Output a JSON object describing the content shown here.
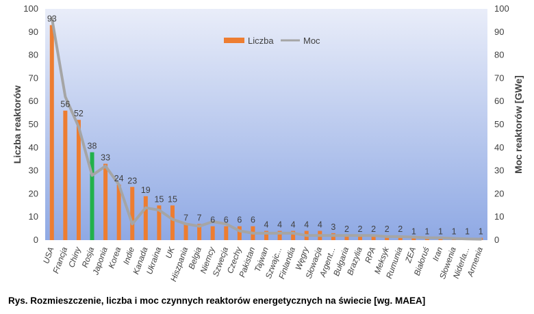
{
  "chart_data": {
    "type": "bar+line",
    "categories": [
      "USA",
      "Francja",
      "Chiny",
      "Rosja",
      "Japonia",
      "Korea",
      "Indie",
      "Kanada",
      "Ukraina",
      "UK",
      "Hiszpania",
      "Belgia",
      "Niemcy",
      "Szwecja",
      "Czechy",
      "Pakistan",
      "Tajwan",
      "Szwajc...",
      "Finlandia",
      "Węgry",
      "Słowacja",
      "Argent...",
      "Bułgaria",
      "Brazylia",
      "RPA",
      "Meksyk",
      "Rumunia",
      "ZEA",
      "Białoruś",
      "Iran",
      "Słowenia",
      "Niderla...",
      "Armenia"
    ],
    "series": [
      {
        "name": "Liczba",
        "type": "bar",
        "axis": "left",
        "color": "#ED7D31",
        "highlight_index": 3,
        "highlight_color": "#22B14C",
        "values": [
          93,
          56,
          52,
          38,
          33,
          24,
          23,
          19,
          15,
          15,
          7,
          7,
          6,
          6,
          6,
          6,
          4,
          4,
          4,
          4,
          4,
          3,
          2,
          2,
          2,
          2,
          2,
          1,
          1,
          1,
          1,
          1,
          1
        ]
      },
      {
        "name": "Moc",
        "type": "line",
        "axis": "right",
        "color": "#A5A5A5",
        "values": [
          96,
          62,
          49,
          28,
          32,
          24,
          7,
          14,
          13,
          9,
          7,
          6,
          8,
          7,
          4,
          3,
          3,
          3,
          3,
          2,
          2,
          2,
          2,
          2,
          2,
          1.5,
          1.5,
          1.3,
          1,
          1,
          0.7,
          0.5,
          0.4
        ]
      }
    ],
    "data_labels": [
      "93",
      "56",
      "52",
      "38",
      "33",
      "24",
      "23",
      "19",
      "15",
      "15",
      "7",
      "7",
      "6",
      "6",
      "6",
      "6",
      "4",
      "4",
      "4",
      "4",
      "4",
      "3",
      "2",
      "2",
      "2",
      "2",
      "2",
      "1",
      "1",
      "1",
      "1",
      "1",
      "1"
    ],
    "highlight_label_color": "#FF0000",
    "ylabel": "Liczba reaktorów",
    "y2label": "Moc reaktorów [GWe]",
    "ylim": [
      0,
      100
    ],
    "y2lim": [
      0,
      100
    ],
    "yticks": [
      "0",
      "10",
      "20",
      "30",
      "40",
      "50",
      "60",
      "70",
      "80",
      "90",
      "100"
    ],
    "y2ticks": [
      "0",
      "10",
      "20",
      "30",
      "40",
      "50",
      "60",
      "70",
      "80",
      "90",
      "100"
    ],
    "legend": [
      "Liczba",
      "Moc"
    ],
    "legend_position": "top-center",
    "plot_background": [
      "#E9EDF9",
      "#8FA9E4"
    ]
  },
  "caption": "Rys. Rozmieszczenie, liczba i moc czynnych reaktorów energetycznych na świecie [wg. MAEA]"
}
